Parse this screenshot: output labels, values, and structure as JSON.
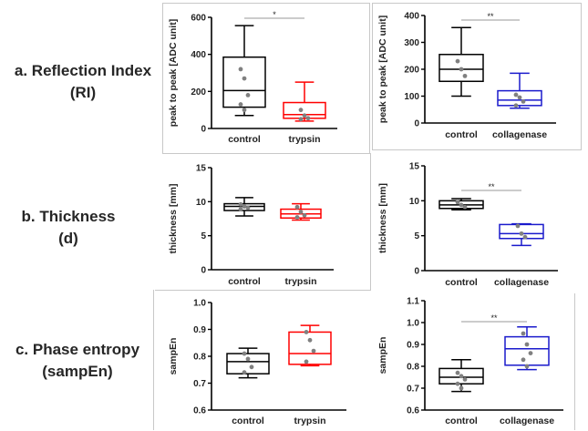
{
  "row_labels": [
    {
      "line1": "a. Reflection Index",
      "line2": "(RI)"
    },
    {
      "line1": "b. Thickness",
      "line2": "(d)"
    },
    {
      "line1": "c. Phase entropy",
      "line2": "(sampEn)"
    }
  ],
  "colors": {
    "control": "#000000",
    "trypsin": "#ff0000",
    "collagenase": "#1a1acc",
    "points": "#808080",
    "sigline": "#999999"
  },
  "chart_data": [
    {
      "type": "box",
      "panel": "a-left",
      "ylabel": "peak to peak [ADC unit]",
      "ylim": [
        0,
        600
      ],
      "yticks": [
        0,
        200,
        400,
        600
      ],
      "categories": [
        "control",
        "trypsin"
      ],
      "boxes": [
        {
          "min": 70,
          "q1": 115,
          "median": 205,
          "q3": 385,
          "max": 555,
          "points": [
            320,
            270,
            180,
            130,
            100
          ]
        },
        {
          "min": 40,
          "q1": 55,
          "median": 75,
          "q3": 140,
          "max": 250,
          "points": [
            100,
            70,
            55,
            50
          ]
        }
      ],
      "significance": "*"
    },
    {
      "type": "box",
      "panel": "a-right",
      "ylabel": "peak to peak [ADC unit]",
      "ylim": [
        0,
        400
      ],
      "yticks": [
        0,
        100,
        200,
        300,
        400
      ],
      "categories": [
        "control",
        "collagenase"
      ],
      "boxes": [
        {
          "min": 100,
          "q1": 155,
          "median": 200,
          "q3": 255,
          "max": 355,
          "points": [
            230,
            200,
            175
          ]
        },
        {
          "min": 55,
          "q1": 65,
          "median": 85,
          "q3": 120,
          "max": 185,
          "points": [
            105,
            95,
            80,
            65
          ]
        }
      ],
      "significance": "**"
    },
    {
      "type": "box",
      "panel": "b-left",
      "ylabel": "thickness [mm]",
      "ylim": [
        0,
        15
      ],
      "yticks": [
        0,
        5,
        10,
        15
      ],
      "categories": [
        "control",
        "trypsin"
      ],
      "boxes": [
        {
          "min": 7.9,
          "q1": 8.7,
          "median": 9.3,
          "q3": 9.7,
          "max": 10.6,
          "points": [
            9.6,
            9.3,
            9.1,
            8.9
          ]
        },
        {
          "min": 7.3,
          "q1": 7.6,
          "median": 8.2,
          "q3": 8.9,
          "max": 9.7,
          "points": [
            9.2,
            8.5,
            8.0,
            7.7
          ]
        }
      ],
      "significance": ""
    },
    {
      "type": "box",
      "panel": "b-right",
      "ylabel": "thickness [mm]",
      "ylim": [
        0,
        15
      ],
      "yticks": [
        0,
        5,
        10,
        15
      ],
      "categories": [
        "control",
        "collagenase"
      ],
      "boxes": [
        {
          "min": 8.7,
          "q1": 8.9,
          "median": 9.4,
          "q3": 10.0,
          "max": 10.3,
          "points": [
            9.8,
            9.4,
            9.1
          ]
        },
        {
          "min": 3.6,
          "q1": 4.6,
          "median": 5.3,
          "q3": 6.6,
          "max": 6.7,
          "points": [
            6.4,
            5.3,
            4.8
          ]
        }
      ],
      "significance": "**"
    },
    {
      "type": "box",
      "panel": "c-left",
      "ylabel": "sampEn",
      "ylim": [
        0.6,
        1.0
      ],
      "yticks": [
        0.6,
        0.7,
        0.8,
        0.9,
        1.0
      ],
      "categories": [
        "control",
        "trypsin"
      ],
      "boxes": [
        {
          "min": 0.72,
          "q1": 0.735,
          "median": 0.78,
          "q3": 0.81,
          "max": 0.83,
          "points": [
            0.81,
            0.79,
            0.76,
            0.74
          ]
        },
        {
          "min": 0.765,
          "q1": 0.77,
          "median": 0.81,
          "q3": 0.89,
          "max": 0.915,
          "points": [
            0.89,
            0.86,
            0.82,
            0.78
          ]
        }
      ],
      "significance": ""
    },
    {
      "type": "box",
      "panel": "c-right",
      "ylabel": "sampEn",
      "ylim": [
        0.6,
        1.1
      ],
      "yticks": [
        0.6,
        0.7,
        0.8,
        0.9,
        1.0,
        1.1
      ],
      "categories": [
        "control",
        "collagenase"
      ],
      "boxes": [
        {
          "min": 0.685,
          "q1": 0.72,
          "median": 0.75,
          "q3": 0.79,
          "max": 0.83,
          "points": [
            0.77,
            0.755,
            0.74,
            0.72,
            0.7
          ]
        },
        {
          "min": 0.785,
          "q1": 0.805,
          "median": 0.88,
          "q3": 0.935,
          "max": 0.98,
          "points": [
            0.95,
            0.9,
            0.86,
            0.83,
            0.8
          ]
        }
      ],
      "significance": "**"
    }
  ]
}
